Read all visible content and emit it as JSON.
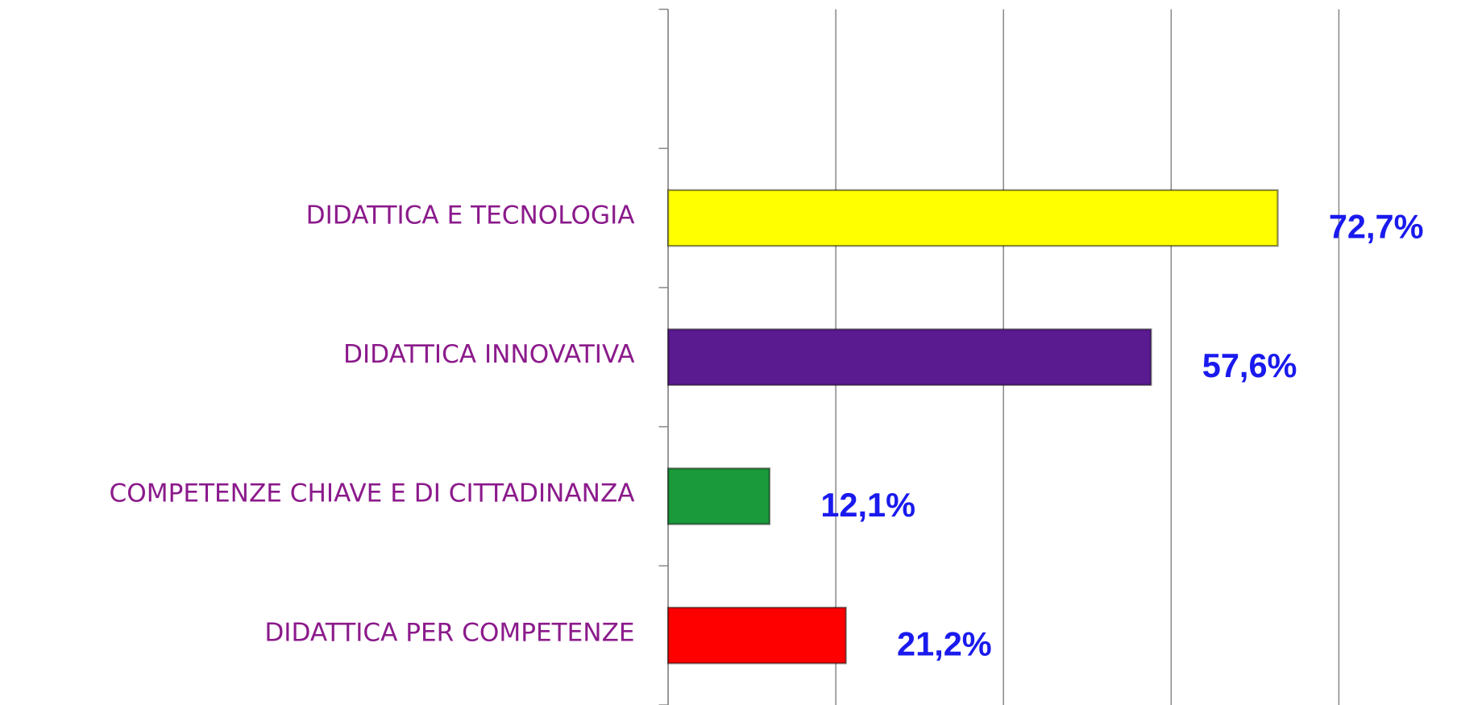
{
  "chart_data": {
    "type": "bar",
    "orientation": "horizontal",
    "categories": [
      null,
      "DIDATTICA E TECNOLOGIA",
      "DIDATTICA INNOVATIVA",
      "COMPETENZE CHIAVE E DI CITTADINANZA",
      "DIDATTICA PER COMPETENZE"
    ],
    "values": [
      null,
      72.7,
      57.6,
      12.1,
      21.2
    ],
    "value_labels": [
      null,
      "72,7%",
      "57,6%",
      "12,1%",
      "21,2%"
    ],
    "colors": [
      null,
      "#ffff00",
      "#5a1a90",
      "#1a9a3a",
      "#ff0000"
    ],
    "xlim": [
      0,
      80
    ],
    "xticks": [
      0,
      20,
      40,
      60,
      80
    ],
    "grid": true
  }
}
